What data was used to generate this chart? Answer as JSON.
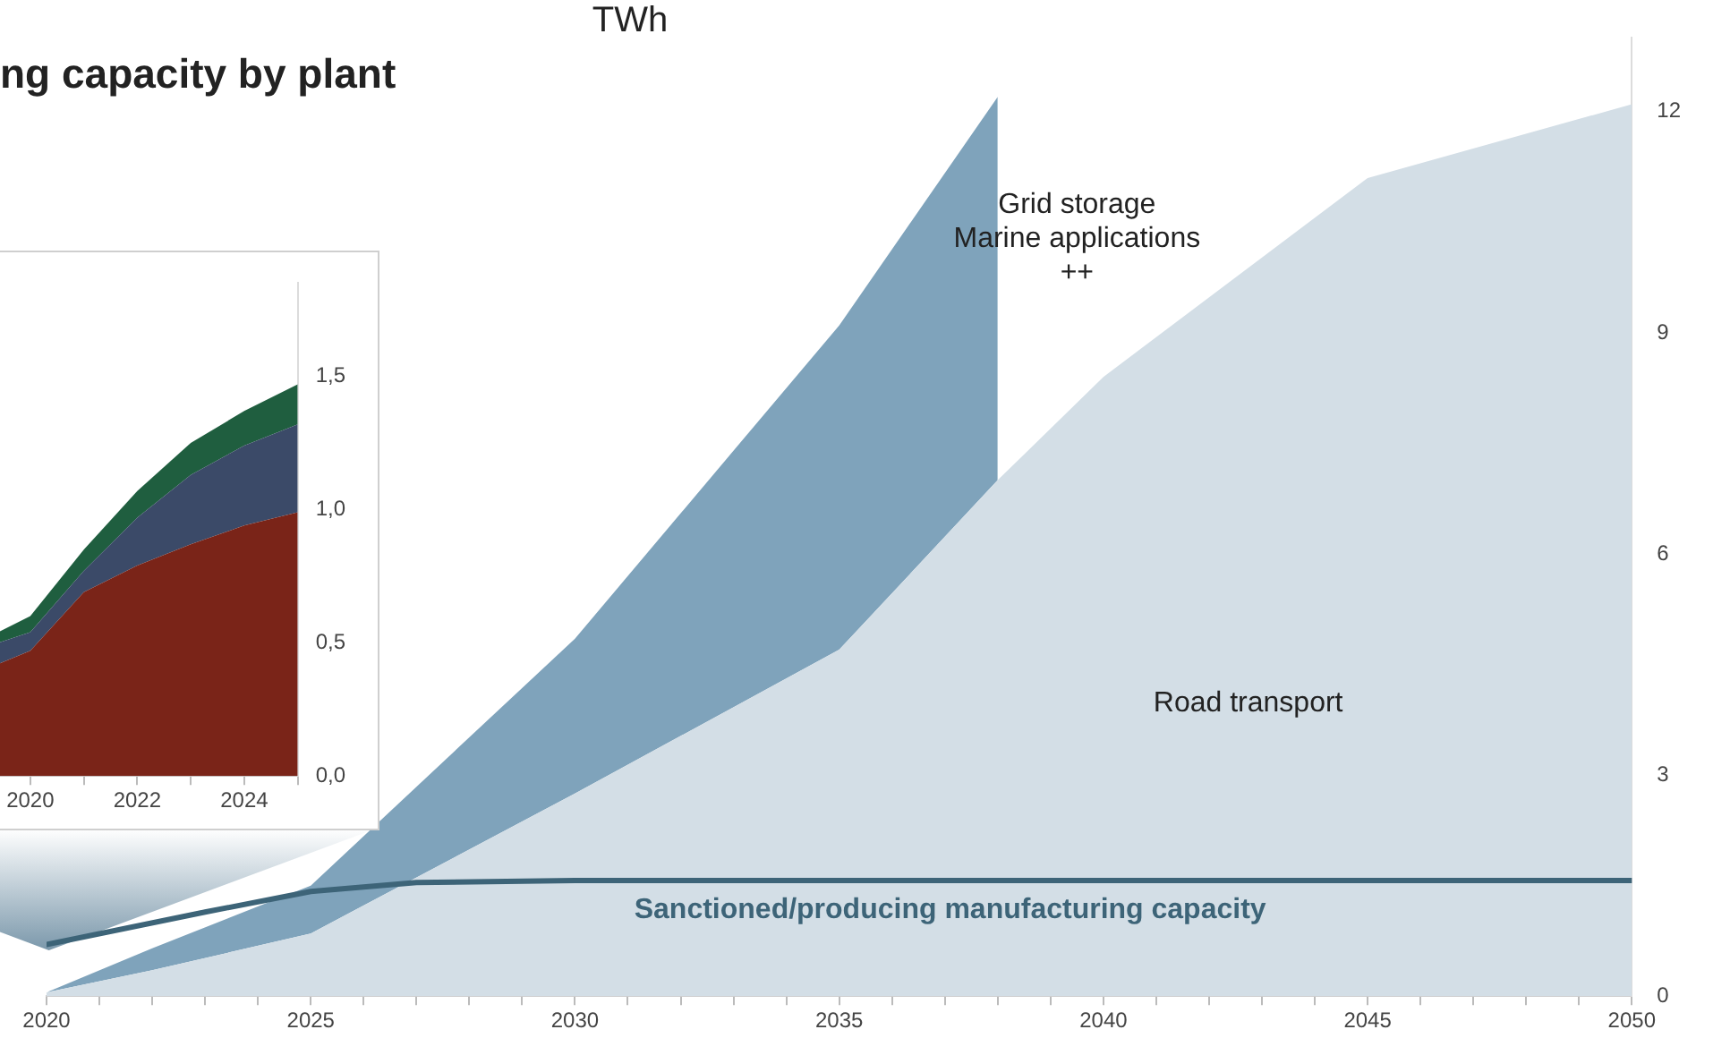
{
  "chart_data": [
    {
      "type": "area",
      "ylabel": "TWh",
      "stacked": true,
      "x": [
        2020,
        2022,
        2025,
        2030,
        2035,
        2038,
        2040,
        2045,
        2050
      ],
      "series": [
        {
          "name": "Road transport",
          "color": "#d3dee6",
          "values": [
            0.05,
            0.35,
            0.85,
            2.75,
            4.7,
            7.0,
            8.4,
            11.1,
            12.1
          ]
        },
        {
          "name": "Grid storage\nMarine applications\n++",
          "color": "#7fa3bb",
          "values": [
            0,
            0.3,
            0.65,
            2.1,
            4.4,
            5.2,
            null,
            null,
            null
          ]
        },
        {
          "name": "Sanctioned/producing manufacturing capacity",
          "type": "line",
          "color": "#3d6478",
          "x": [
            2020,
            2023,
            2025,
            2027,
            2030,
            2050
          ],
          "values": [
            0.7,
            1.14,
            1.42,
            1.54,
            1.57,
            1.57
          ]
        }
      ],
      "xlim": [
        2020,
        2050
      ],
      "xticks": [
        2020,
        {
          "value": 2021,
          "label": null
        },
        {
          "value": 2022,
          "label": null
        },
        {
          "value": 2023,
          "label": null
        },
        {
          "value": 2024,
          "label": null
        },
        2025,
        {
          "value": 2026,
          "label": null
        },
        {
          "value": 2027,
          "label": null
        },
        {
          "value": 2028,
          "label": null
        },
        {
          "value": 2029,
          "label": null
        },
        2030,
        {
          "value": 2031,
          "label": null
        },
        {
          "value": 2032,
          "label": null
        },
        {
          "value": 2033,
          "label": null
        },
        {
          "value": 2034,
          "label": null
        },
        2035,
        {
          "value": 2036,
          "label": null
        },
        {
          "value": 2037,
          "label": null
        },
        {
          "value": 2038,
          "label": null
        },
        {
          "value": 2039,
          "label": null
        },
        2040,
        {
          "value": 2041,
          "label": null
        },
        {
          "value": 2042,
          "label": null
        },
        {
          "value": 2043,
          "label": null
        },
        {
          "value": 2044,
          "label": null
        },
        2045,
        {
          "value": 2046,
          "label": null
        },
        {
          "value": 2047,
          "label": null
        },
        {
          "value": 2048,
          "label": null
        },
        {
          "value": 2049,
          "label": null
        },
        2050
      ],
      "ylim": [
        0,
        13
      ],
      "yticks": [
        0,
        3,
        6,
        9,
        12
      ]
    },
    {
      "type": "area",
      "title": "ng capacity by plant",
      "stacked": true,
      "x": [
        2019.4,
        2020,
        2021,
        2022,
        2023,
        2024,
        2025
      ],
      "series": [
        {
          "color": "#7a2418",
          "values": [
            0.42,
            0.47,
            0.69,
            0.79,
            0.87,
            0.94,
            0.99
          ]
        },
        {
          "color": "#3b4a68",
          "values": [
            0.08,
            0.07,
            0.08,
            0.18,
            0.26,
            0.3,
            0.33
          ]
        },
        {
          "color": "#1f5e3f",
          "values": [
            0.04,
            0.06,
            0.08,
            0.1,
            0.12,
            0.13,
            0.15
          ]
        }
      ],
      "xlim": [
        2019.4,
        2025
      ],
      "xticks": [
        2020,
        {
          "value": 2021,
          "label": null
        },
        2022,
        {
          "value": 2023,
          "label": null
        },
        2024,
        {
          "value": 2025,
          "label": null
        }
      ],
      "ylim": [
        0,
        1.85
      ],
      "yticks": [
        {
          "value": 0,
          "label": "0,0"
        },
        {
          "value": 0.5,
          "label": "0,5"
        },
        {
          "value": 1,
          "label": "1,0"
        },
        {
          "value": 1.5,
          "label": "1,5"
        }
      ]
    }
  ]
}
